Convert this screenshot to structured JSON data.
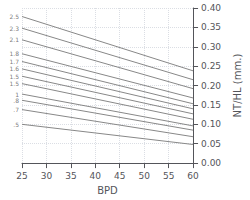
{
  "chart_data": {
    "type": "line",
    "x": [
      25,
      60
    ],
    "series": [
      {
        "values": [
          0.378,
          0.238
        ]
      },
      {
        "values": [
          0.348,
          0.215
        ]
      },
      {
        "values": [
          0.318,
          0.192
        ]
      },
      {
        "values": [
          0.282,
          0.168
        ]
      },
      {
        "values": [
          0.262,
          0.153
        ]
      },
      {
        "values": [
          0.243,
          0.14
        ]
      },
      {
        "values": [
          0.224,
          0.127
        ]
      },
      {
        "values": [
          0.205,
          0.113
        ]
      },
      {
        "values": [
          0.178,
          0.096
        ]
      },
      {
        "values": [
          0.162,
          0.085
        ]
      },
      {
        "values": [
          0.138,
          0.068
        ]
      },
      {
        "values": [
          0.1,
          0.048
        ]
      }
    ],
    "color": "#888888",
    "annotations": [
      {
        "text": "2.5",
        "x": 25,
        "y": 0.378
      },
      {
        "text": "2.3",
        "x": 25,
        "y": 0.348
      },
      {
        "text": "2.1",
        "x": 25,
        "y": 0.318
      },
      {
        "text": "1.8",
        "x": 25,
        "y": 0.282
      },
      {
        "text": "1.7",
        "x": 25,
        "y": 0.262
      },
      {
        "text": "1.6",
        "x": 25,
        "y": 0.243
      },
      {
        "text": "1.5",
        "x": 25,
        "y": 0.224
      },
      {
        "text": "1.5",
        "x": 25,
        "y": 0.205
      },
      {
        "text": "1",
        "x": 25,
        "y": 0.178
      },
      {
        "text": ".8",
        "x": 25,
        "y": 0.162
      },
      {
        "text": ".7",
        "x": 25,
        "y": 0.138
      },
      {
        "text": ".5",
        "x": 25,
        "y": 0.1
      }
    ],
    "xlabel": "BPD",
    "ylabel": "NT/HL (mm.)",
    "xlim": [
      25,
      60
    ],
    "xticks": [
      25,
      30,
      35,
      40,
      45,
      50,
      55,
      60
    ],
    "ylim": [
      0,
      0.4
    ],
    "yticks": [
      {
        "value": 0,
        "label": "0.00"
      },
      0.05,
      {
        "value": 0.1,
        "label": "0.10"
      },
      0.15,
      {
        "value": 0.2,
        "label": "0.20"
      },
      0.25,
      {
        "value": 0.3,
        "label": "0.30"
      },
      0.35,
      {
        "value": 0.4,
        "label": "0.40"
      }
    ],
    "grid": true
  }
}
